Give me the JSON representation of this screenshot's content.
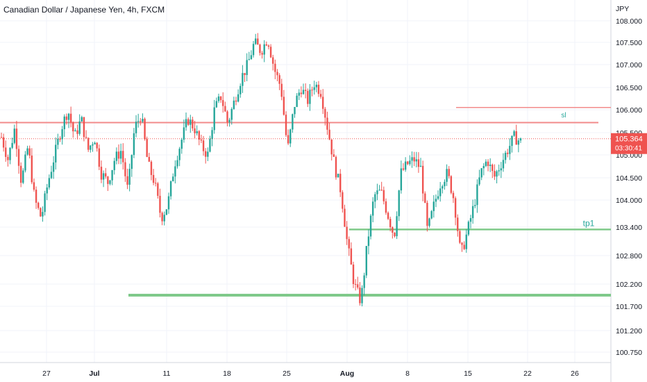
{
  "chart_data": {
    "type": "candlestick",
    "title": "Canadian Dollar / Japanese Yen, 4h, FXCM",
    "currency": "JPY",
    "price_ticks": [
      "108.000",
      "107.500",
      "107.000",
      "106.500",
      "106.000",
      "105.500",
      "105.000",
      "104.500",
      "104.000",
      "103.400",
      "102.800",
      "102.200",
      "101.700",
      "101.200",
      "100.750"
    ],
    "date_ticks": [
      "27",
      "Jul",
      "11",
      "18",
      "25",
      "Aug",
      "8",
      "15",
      "22",
      "26"
    ],
    "last_price": "105.364",
    "countdown": "03:30:41",
    "ylim": [
      100.6,
      108.2
    ],
    "colors": {
      "up": "#26a69a",
      "down": "#ef5350",
      "sl": "#f28b8b",
      "tp": "#7fc98a",
      "tp_text": "#26a69a"
    },
    "levels": [
      {
        "name": "resistance",
        "price": 105.72
      },
      {
        "name": "sl",
        "label": "sl",
        "price": 106.05
      },
      {
        "name": "tp1",
        "label": "tp1",
        "price": 103.35
      },
      {
        "name": "support",
        "price": 101.95
      }
    ],
    "path": [
      105.4,
      104.9,
      105.6,
      104.4,
      105.2,
      104.0,
      103.6,
      104.4,
      105.0,
      105.6,
      106.0,
      105.4,
      105.8,
      105.1,
      105.4,
      104.6,
      104.4,
      104.9,
      105.1,
      104.2,
      105.6,
      105.9,
      104.8,
      104.4,
      103.6,
      103.9,
      104.8,
      105.3,
      105.8,
      105.6,
      105.2,
      105.0,
      106.0,
      106.3,
      105.7,
      106.2,
      106.7,
      107.0,
      107.5,
      107.3,
      107.6,
      106.9,
      106.5,
      105.1,
      106.1,
      106.5,
      106.2,
      106.6,
      106.4,
      105.6,
      104.8,
      104.2,
      103.0,
      102.2,
      101.8,
      103.1,
      104.1,
      104.2,
      103.7,
      103.2,
      104.6,
      104.8,
      104.9,
      104.7,
      103.3,
      103.9,
      104.4,
      104.6,
      104.0,
      102.8,
      103.3,
      103.9,
      104.6,
      104.9,
      104.5,
      104.8,
      105.1,
      105.4,
      105.3
    ]
  }
}
